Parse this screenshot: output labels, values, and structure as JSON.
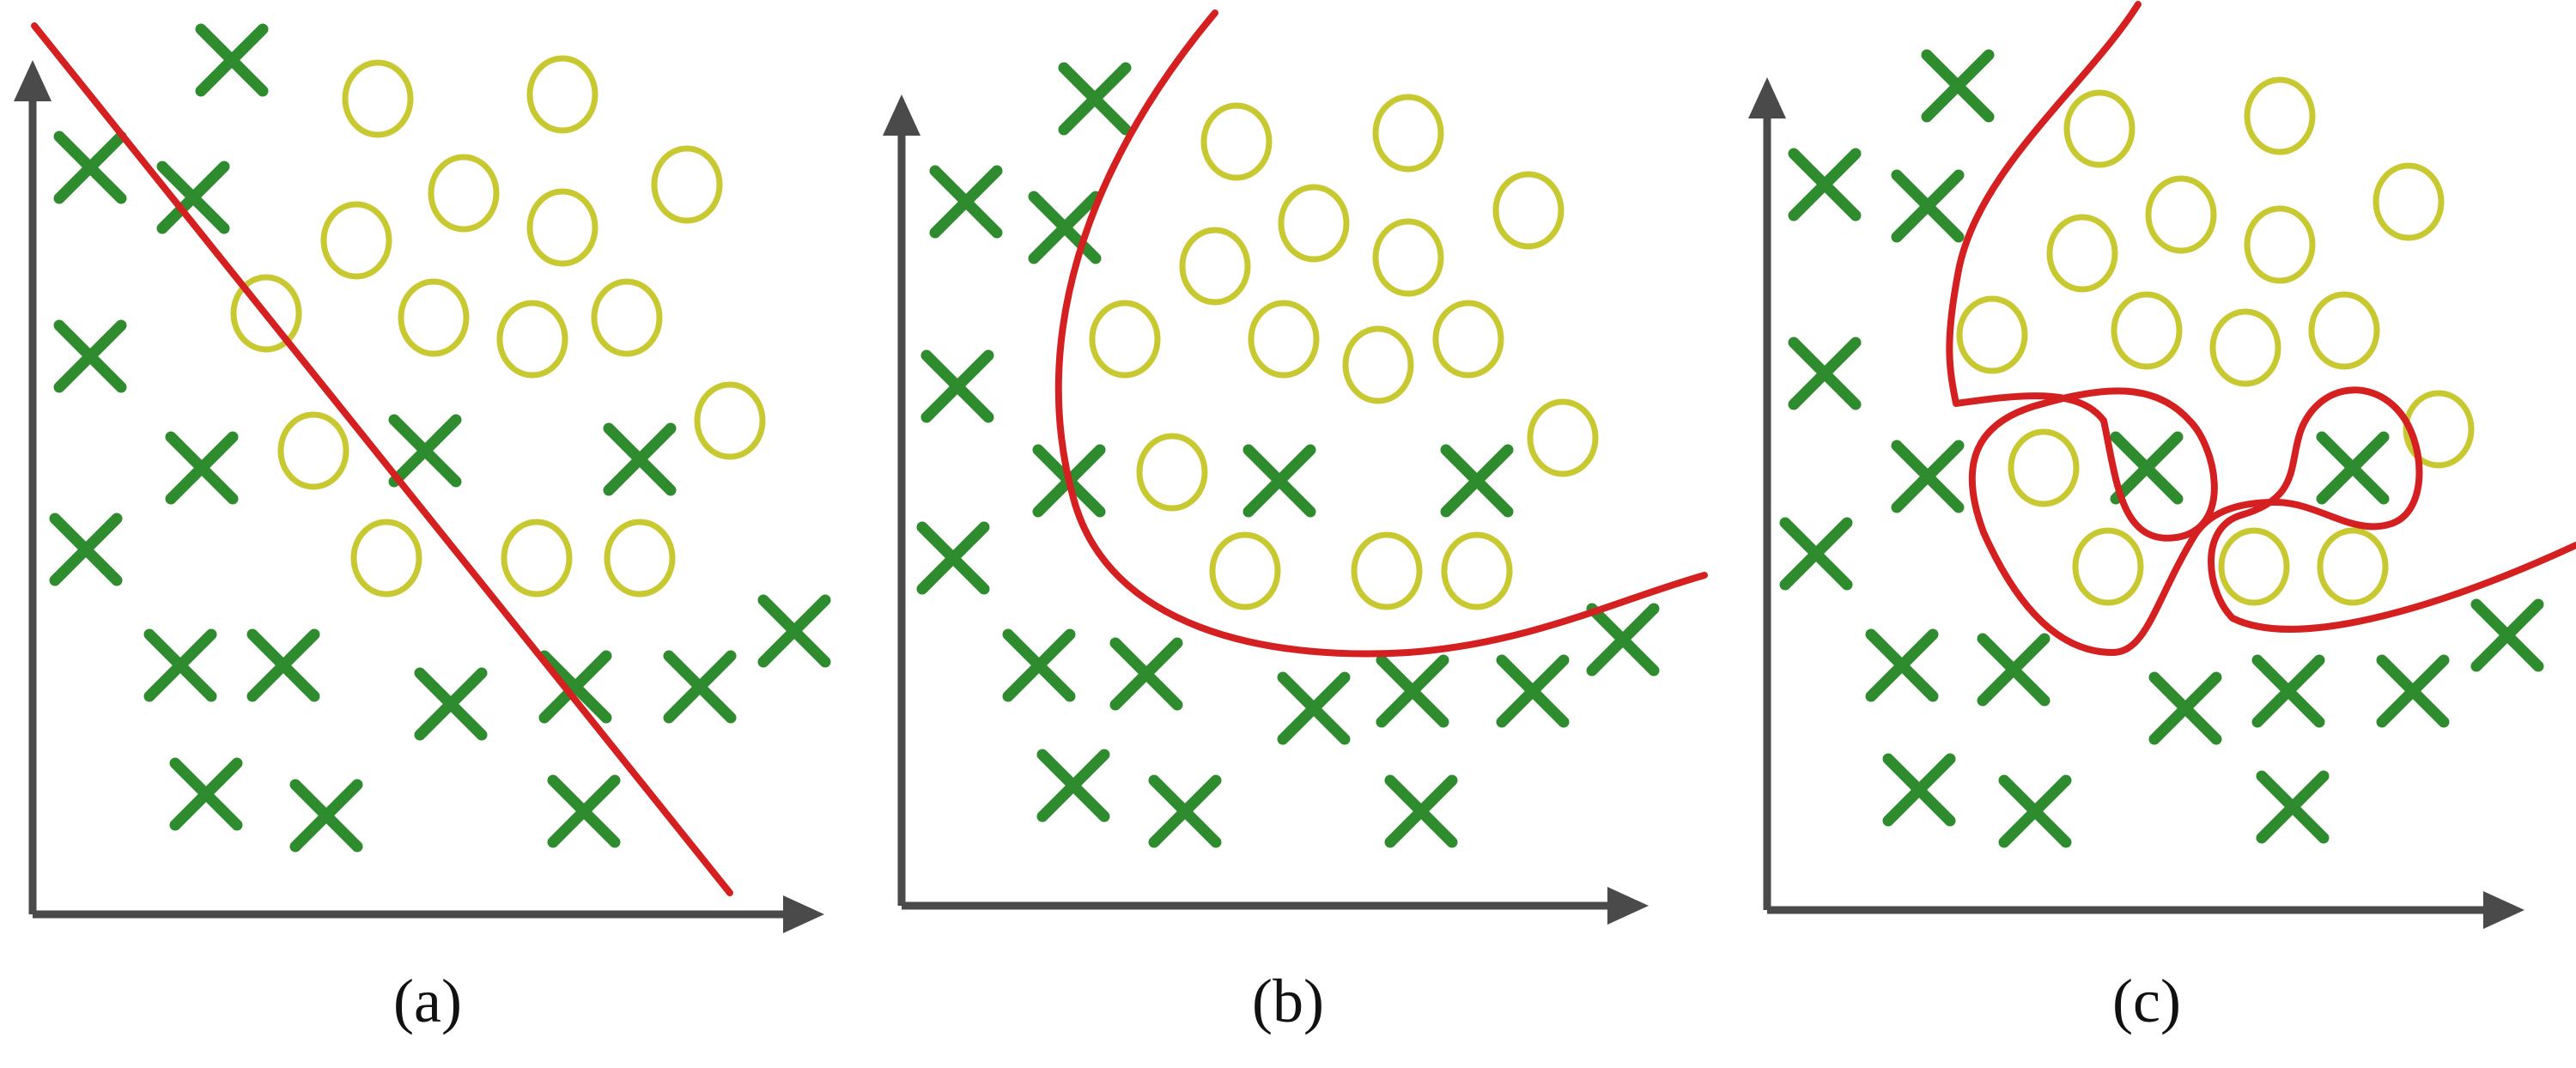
{
  "figure": {
    "colors": {
      "x_marker": "#2e8b2e",
      "o_marker": "#c8c830",
      "boundary": "#d42020",
      "axis": "#4a4a4a"
    },
    "panels": [
      {
        "id": "a",
        "caption": "(a)",
        "boundary_shape": "straight line"
      },
      {
        "id": "b",
        "caption": "(b)",
        "boundary_shape": "smooth curve"
      },
      {
        "id": "c",
        "caption": "(c)",
        "boundary_shape": "highly irregular curve"
      }
    ]
  }
}
